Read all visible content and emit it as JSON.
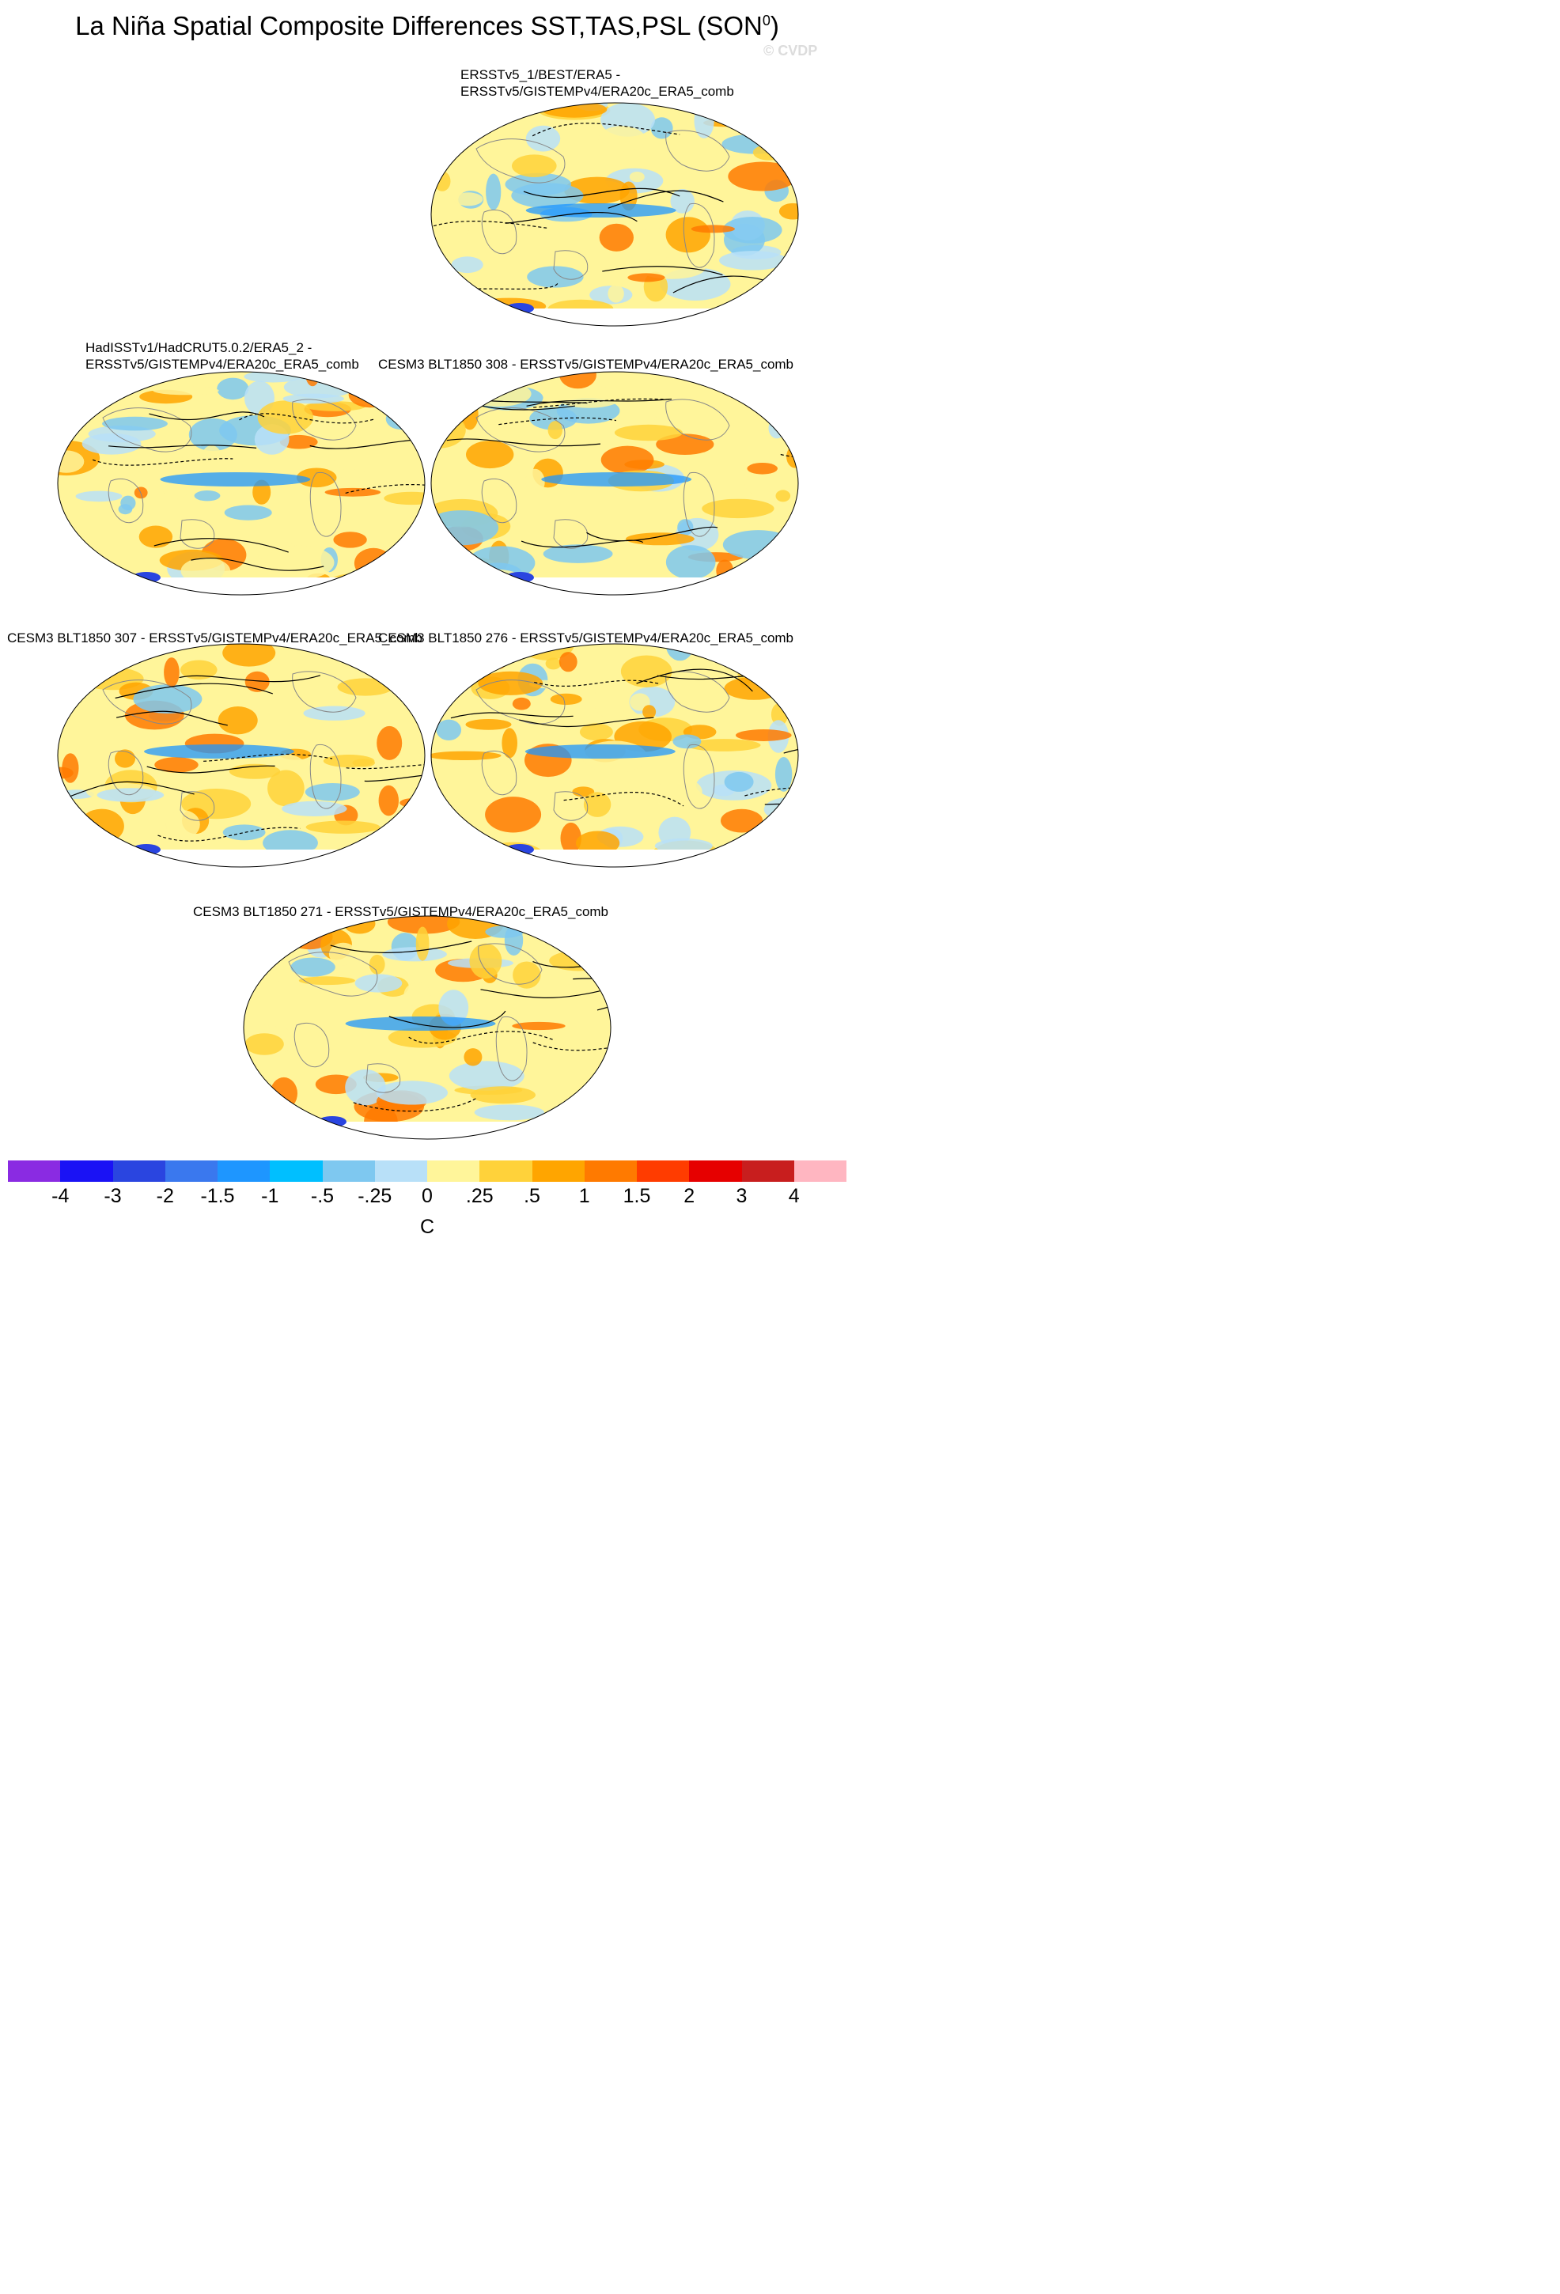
{
  "figure": {
    "title_main": "La Niña Spatial Composite Differences SST,TAS,PSL (SON",
    "title_sup": "0",
    "title_end": ")",
    "watermark": "© CVDP"
  },
  "panels": [
    {
      "id": "ersst-best-era5",
      "title_lines": [
        "ERSSTv5_1/BEST/ERA5 -",
        "ERSSTv5/GISTEMPv4/ERA20c_ERA5_comb"
      ]
    },
    {
      "id": "hadisst-hadcrut",
      "title_lines": [
        "HadISSTv1/HadCRUT5.0.2/ERA5_2 -",
        "ERSSTv5/GISTEMPv4/ERA20c_ERA5_comb"
      ]
    },
    {
      "id": "cesm3-308",
      "title_lines": [
        "CESM3 BLT1850 308 - ERSSTv5/GISTEMPv4/ERA20c_ERA5_comb"
      ]
    },
    {
      "id": "cesm3-307",
      "title_lines": [
        "CESM3 BLT1850 307 - ERSSTv5/GISTEMPv4/ERA20c_ERA5_comb"
      ]
    },
    {
      "id": "cesm3-276",
      "title_lines": [
        "CESM3 BLT1850 276 - ERSSTv5/GISTEMPv4/ERA20c_ERA5_comb"
      ]
    },
    {
      "id": "cesm3-271",
      "title_lines": [
        "CESM3 BLT1850 271 - ERSSTv5/GISTEMPv4/ERA20c_ERA5_comb"
      ]
    }
  ],
  "colorbar": {
    "colors": [
      "#8a2be2",
      "#1a12f5",
      "#2a45e0",
      "#3a78ee",
      "#1e96ff",
      "#00bfff",
      "#7ec8f0",
      "#b8e0f8",
      "#fff59a",
      "#ffd23a",
      "#ffa500",
      "#ff7a00",
      "#ff3c00",
      "#e60000",
      "#c81e1e",
      "#ffb6c1"
    ],
    "tick_labels": [
      "-4",
      "-3",
      "-2",
      "-1.5",
      "-1",
      "-.5",
      "-.25",
      "0",
      ".25",
      ".5",
      "1",
      "1.5",
      "2",
      "3",
      "4"
    ],
    "unit": "C"
  }
}
